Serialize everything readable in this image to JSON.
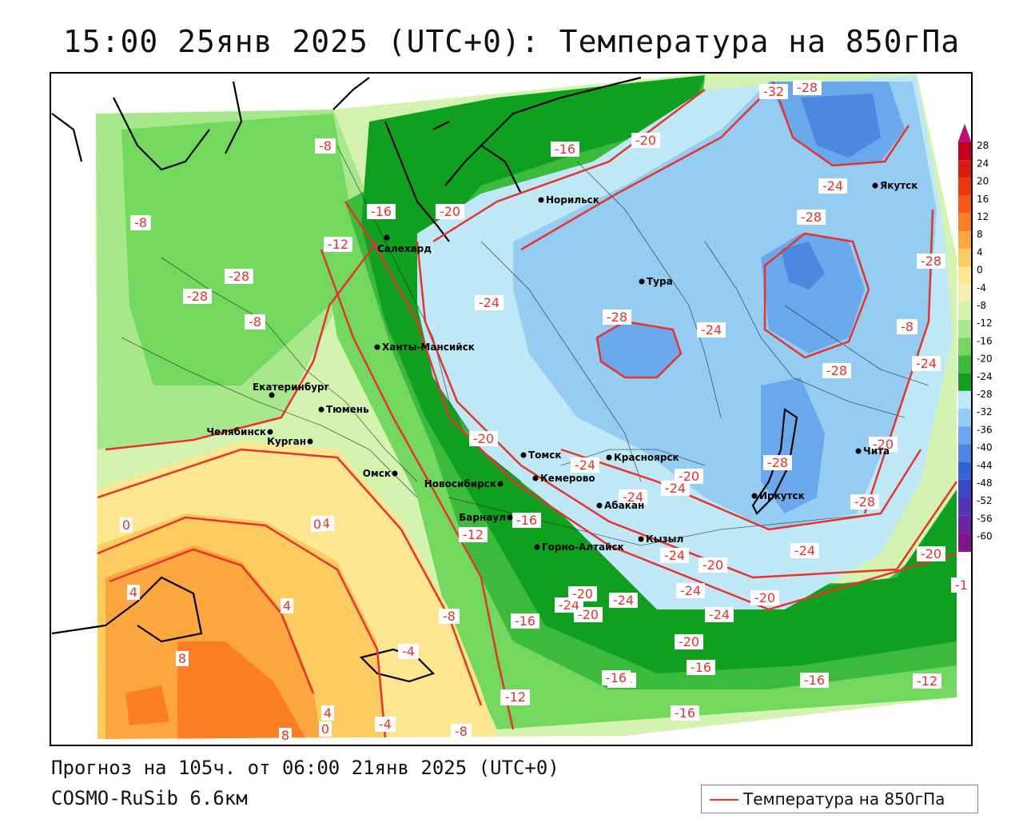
{
  "title": "15:00 25янв 2025 (UTC+0): Температура на 850гПа",
  "forecast": "Прогноз на 105ч. от 06:00 21янв 2025 (UTC+0)",
  "model": "COSMO-RuSib 6.6км",
  "legend": {
    "label": "Температура на 850гПа",
    "line_color": "#e8322c"
  },
  "colorbar": {
    "ticks": [
      "28",
      "24",
      "20",
      "16",
      "12",
      "8",
      "4",
      "0",
      "-4",
      "-8",
      "-12",
      "-16",
      "-20",
      "-24",
      "-28",
      "-32",
      "-36",
      "-40",
      "-44",
      "-48",
      "-52",
      "-56",
      "-60"
    ],
    "colors": [
      "#c4001e",
      "#d81c10",
      "#e8380c",
      "#f45a10",
      "#fb7f22",
      "#fca640",
      "#fccc60",
      "#fce690",
      "#f4f0b4",
      "#d4f2b0",
      "#a8e88c",
      "#72d85e",
      "#3cba3c",
      "#10a020",
      "#bfe8f6",
      "#94ccf2",
      "#6aa8ec",
      "#4a88e2",
      "#3066d4",
      "#3a48c4",
      "#5236b4",
      "#6a24a4",
      "#80148c",
      "#96087c"
    ]
  },
  "cities": [
    {
      "name": "Салехард"
    },
    {
      "name": "Норильск"
    },
    {
      "name": "Якутск"
    },
    {
      "name": "Тура"
    },
    {
      "name": "Ханты-Мансийск"
    },
    {
      "name": "Екатеринбург"
    },
    {
      "name": "Тюмень"
    },
    {
      "name": "Челябинск"
    },
    {
      "name": "Курган"
    },
    {
      "name": "Омск"
    },
    {
      "name": "Новосибирск"
    },
    {
      "name": "Томск"
    },
    {
      "name": "Красноярск"
    },
    {
      "name": "Кемерово"
    },
    {
      "name": "Абакан"
    },
    {
      "name": "Барнаул"
    },
    {
      "name": "Горно-Алтайск"
    },
    {
      "name": "Кызыл"
    },
    {
      "name": "Иркутск"
    },
    {
      "name": "Чита"
    }
  ],
  "contour_labels": [
    "-32",
    "-28",
    "-8",
    "-16",
    "-20",
    "-24",
    "-28",
    "-8",
    "-16",
    "-20",
    "-12",
    "-8",
    "-28",
    "-28",
    "-8",
    "-24",
    "-28",
    "-24",
    "-8",
    "-24",
    "-28",
    "-20",
    "-28",
    "-20",
    "-24",
    "-20",
    "-4",
    "-16",
    "-12",
    "-24",
    "-20",
    "-24",
    "-28",
    "-28",
    "0",
    "0",
    "-16",
    "-24",
    "-20",
    "-24",
    "-24",
    "4",
    "4",
    "-20",
    "-24",
    "-20",
    "-20",
    "-8",
    "-24",
    "-16",
    "-24",
    "8",
    "-4",
    "-20",
    "-16",
    "-16",
    "-16",
    "-12",
    "-12",
    "-8",
    "4",
    "-4",
    "-16",
    "8",
    "0",
    "-1",
    "-24"
  ]
}
